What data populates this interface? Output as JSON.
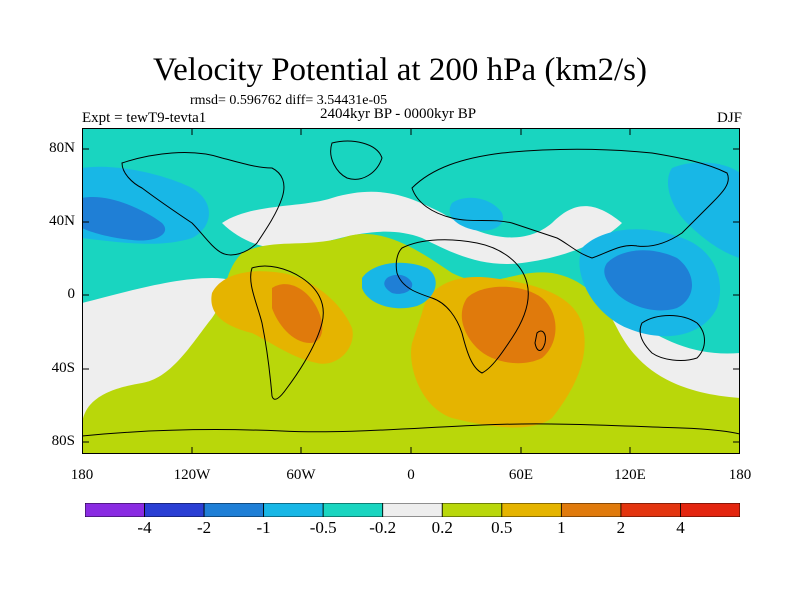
{
  "title": "Velocity Potential at 200 hPa (km2/s)",
  "stats": "rmsd= 0.596762 diff= 3.54431e-05",
  "experiment": "Expt = tewT9-tevta1",
  "period": "2404kyr BP - 0000kyr BP",
  "season": "DJF",
  "lat_labels": [
    "80N",
    "40N",
    "0",
    "40S",
    "80S"
  ],
  "lon_labels": [
    "180",
    "120W",
    "60W",
    "0",
    "60E",
    "120E",
    "180"
  ],
  "colorbar": {
    "labels": [
      "-4",
      "-2",
      "-1",
      "-0.5",
      "-0.2",
      "0.2",
      "0.5",
      "1",
      "2",
      "4"
    ],
    "colors": [
      "#8a2be2",
      "#2a3fd4",
      "#1f7fd6",
      "#18b7e6",
      "#19d5c0",
      "#eeeeee",
      "#b9d70a",
      "#e5b400",
      "#e07a0c",
      "#e3350f",
      "#e3250f"
    ]
  },
  "palette": {
    "background_fill": "#19d5c0",
    "neutral": "#eeeeee",
    "light_blue": "#18b7e6",
    "mid_blue": "#1f7fd6",
    "yellow_green": "#b9d70a",
    "orange": "#e5b400",
    "dark_orange": "#e07a0c",
    "coastline": "#000000"
  }
}
